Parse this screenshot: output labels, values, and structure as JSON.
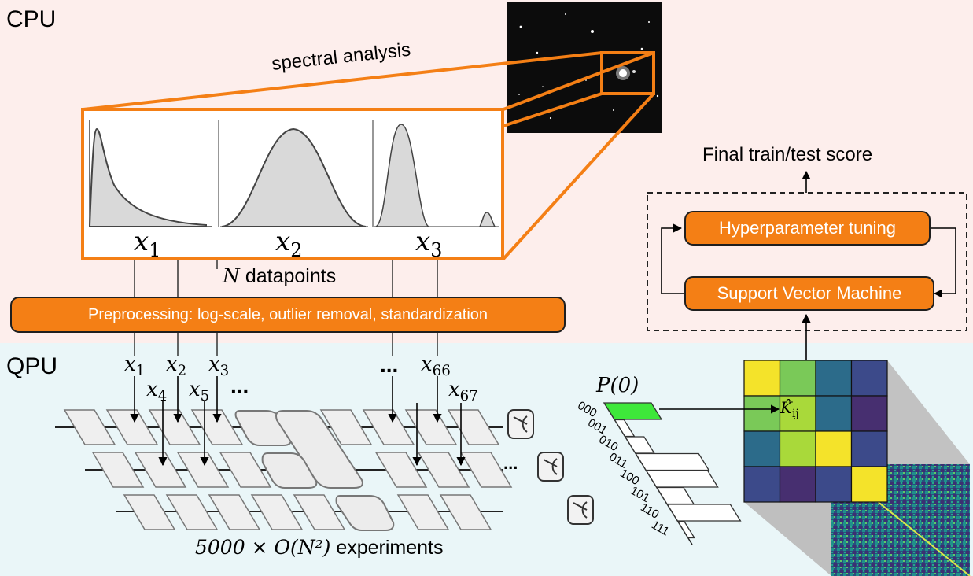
{
  "regions": {
    "cpu_label": "CPU",
    "qpu_label": "QPU"
  },
  "spectral": {
    "label": "spectral analysis"
  },
  "spectra": [
    {
      "var": "x",
      "sub": "1"
    },
    {
      "var": "x",
      "sub": "2"
    },
    {
      "var": "x",
      "sub": "3"
    }
  ],
  "datapoints": {
    "var": "N",
    "text": " datapoints"
  },
  "preprocessing": {
    "label": "Preprocessing: log-scale, outlier removal, standardization"
  },
  "inputs": {
    "x1": {
      "var": "x",
      "sub": "1"
    },
    "x2": {
      "var": "x",
      "sub": "2"
    },
    "x3": {
      "var": "x",
      "sub": "3"
    },
    "x4": {
      "var": "x",
      "sub": "4"
    },
    "x5": {
      "var": "x",
      "sub": "5"
    },
    "x66": {
      "var": "x",
      "sub": "66"
    },
    "x67": {
      "var": "x",
      "sub": "67"
    },
    "ellipsis": "..."
  },
  "experiments": {
    "expr": "5000 × O(N²)",
    "text": " experiments"
  },
  "probability": {
    "label": "P(0)",
    "bitstrings": [
      "000",
      "001",
      "010",
      "011",
      "100",
      "101",
      "110",
      "111"
    ]
  },
  "kernel": {
    "entry_label": "K̂",
    "entry_sub": "ij"
  },
  "ml": {
    "final_score": "Final train/test score",
    "tuning": "Hyperparameter tuning",
    "svm": "Support Vector Machine"
  },
  "colors": {
    "accent": "#f47f15",
    "cpu_bg": "#fdeeec",
    "qpu_bg": "#eaf6f8",
    "highlight": "#3ee83a"
  }
}
